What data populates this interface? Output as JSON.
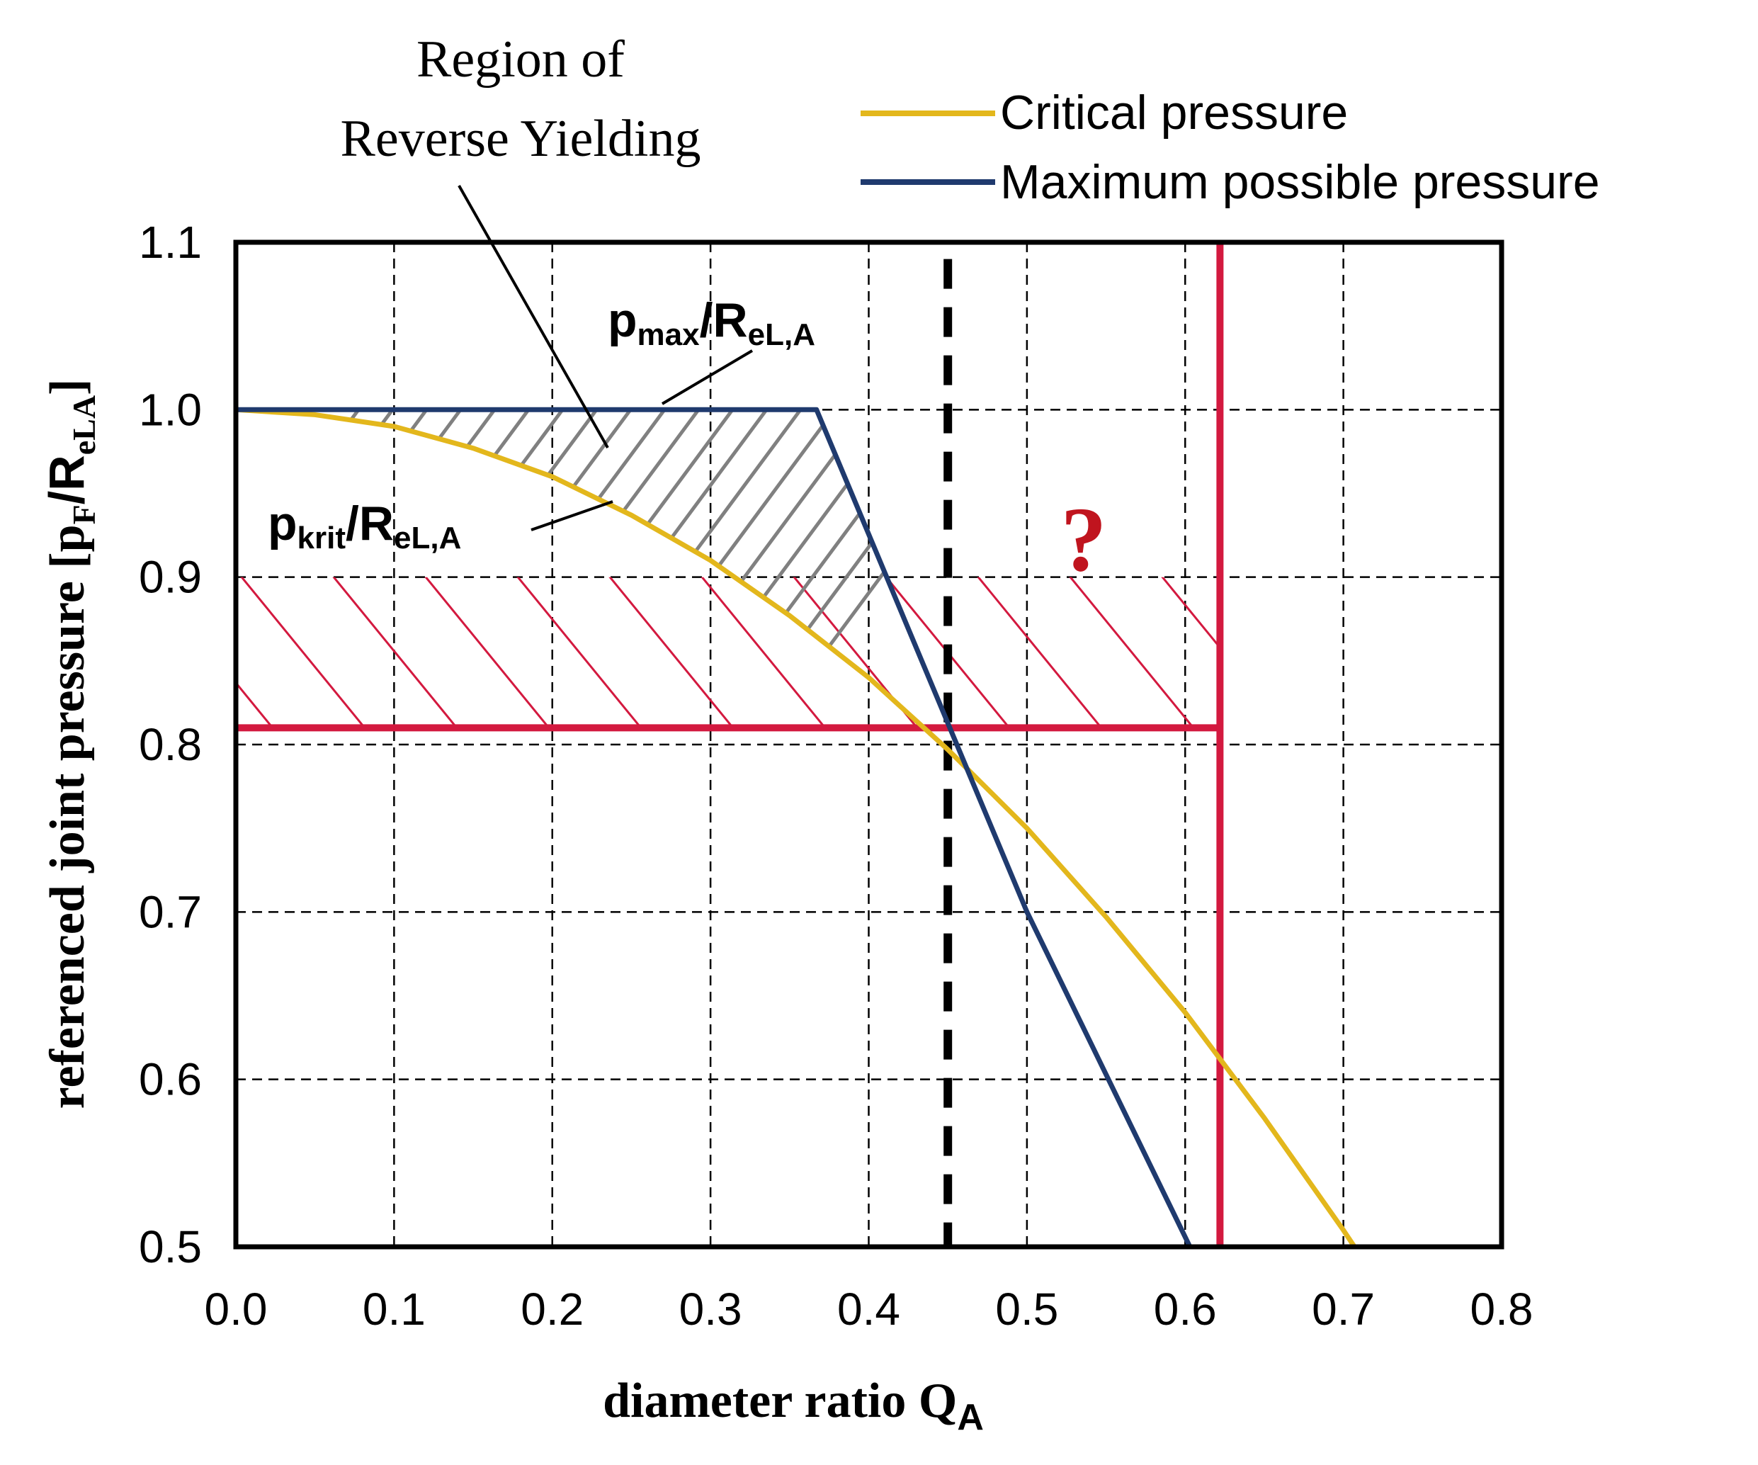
{
  "chart_data": {
    "type": "line",
    "title": "",
    "xlabel_main": "diameter ratio Q",
    "xlabel_sub": "A",
    "ylabel_main": "referenced joint pressure [p",
    "ylabel_sub1": "F",
    "ylabel_mid": "/R",
    "ylabel_sub2": "eLA",
    "ylabel_end": "]",
    "xlim": [
      0.0,
      0.8
    ],
    "ylim": [
      0.5,
      1.1
    ],
    "xticks": [
      0.0,
      0.1,
      0.2,
      0.3,
      0.4,
      0.5,
      0.6,
      0.7,
      0.8
    ],
    "yticks": [
      0.5,
      0.6,
      0.7,
      0.8,
      0.9,
      1.0,
      1.1
    ],
    "xtick_labels": [
      "0.0",
      "0.1",
      "0.2",
      "0.3",
      "0.4",
      "0.5",
      "0.6",
      "0.7",
      "0.8"
    ],
    "ytick_labels": [
      "0.5",
      "0.6",
      "0.7",
      "0.8",
      "0.9",
      "1.0",
      "1.1"
    ],
    "grid": true,
    "legend_position": "top-right",
    "series": [
      {
        "name": "Critical pressure",
        "color": "#e3b71c",
        "x": [
          0.0,
          0.05,
          0.1,
          0.15,
          0.2,
          0.25,
          0.3,
          0.35,
          0.4,
          0.45,
          0.5,
          0.55,
          0.6,
          0.65,
          0.7,
          0.707
        ],
        "y": [
          1.0,
          0.997,
          0.99,
          0.977,
          0.96,
          0.937,
          0.91,
          0.877,
          0.84,
          0.797,
          0.75,
          0.697,
          0.64,
          0.577,
          0.51,
          0.5
        ]
      },
      {
        "name": "Maximum possible pressure",
        "color": "#1f3a6e",
        "x": [
          0.0,
          0.367,
          0.5,
          0.603
        ],
        "y": [
          1.0,
          1.0,
          0.7,
          0.5
        ]
      }
    ],
    "reference_lines": {
      "vertical_dashed_x": 0.45,
      "vertical_red_x": 0.622,
      "horizontal_red_y": 0.81,
      "red_color": "#d3193f",
      "hatch_gray_color": "#808080"
    },
    "annotations": {
      "region_line1": "Region of",
      "region_line2": "Reverse Yielding",
      "pmax_main": "p",
      "pmax_sub1": "max",
      "pmax_mid": "/R",
      "pmax_sub2": "eL,A",
      "pkrit_main": "p",
      "pkrit_sub1": "krit",
      "pkrit_mid": "/R",
      "pkrit_sub2": "eL,A",
      "question": "?"
    }
  }
}
